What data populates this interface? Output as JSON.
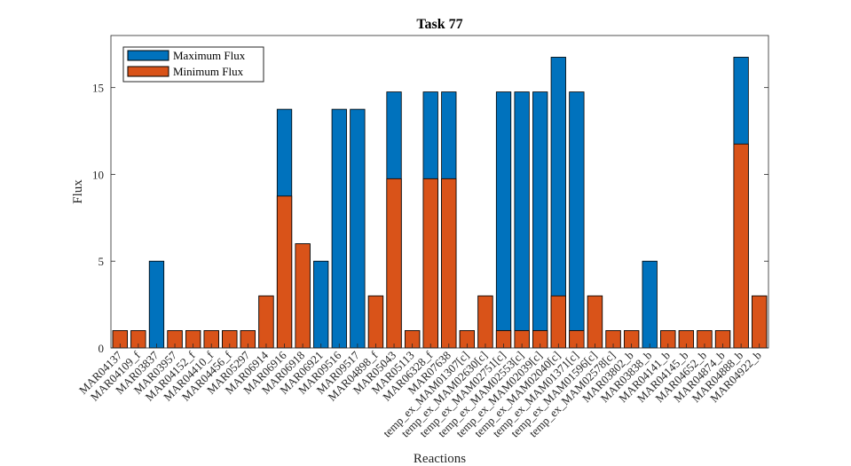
{
  "chart_data": {
    "type": "bar",
    "title": "Task 77",
    "xlabel": "Reactions",
    "ylabel": "Flux",
    "ylim": [
      0,
      18
    ],
    "yticks": [
      0,
      5,
      10,
      15
    ],
    "grid": false,
    "legend_position": "top-left",
    "colors": {
      "max": "#0072BD",
      "min": "#D95319",
      "edge": "#000000"
    },
    "categories": [
      "MAR04137",
      "MAR04109_f",
      "MAR03837",
      "MAR03957",
      "MAR04152_f",
      "MAR04410_f",
      "MAR04456_f",
      "MAR05297",
      "MAR06914",
      "MAR06916",
      "MAR06918",
      "MAR06921",
      "MAR09516",
      "MAR09517",
      "MAR04898_f",
      "MAR05043",
      "MAR05113",
      "MAR06328_f",
      "MAR07638",
      "temp_ex_MAM01307[c]",
      "temp_ex_MAM02630[c]",
      "temp_ex_MAM02751[c]",
      "temp_ex_MAM02553[c]",
      "temp_ex_MAM02039[c]",
      "temp_ex_MAM02040[c]",
      "temp_ex_MAM01371[c]",
      "temp_ex_MAM01596[c]",
      "temp_ex_MAM02578[c]",
      "MAR03802_b",
      "MAR03838_b",
      "MAR04141_b",
      "MAR04145_b",
      "MAR04652_b",
      "MAR04874_b",
      "MAR04888_b",
      "MAR04922_b"
    ],
    "series": [
      {
        "name": "Maximum Flux",
        "values": [
          1,
          1,
          5,
          1,
          1,
          1,
          1,
          1,
          3,
          13.75,
          6,
          5,
          13.75,
          13.75,
          3,
          14.75,
          1,
          14.75,
          14.75,
          1,
          3,
          14.75,
          14.75,
          14.75,
          16.75,
          14.75,
          3,
          1,
          1,
          5,
          1,
          1,
          1,
          1,
          16.75,
          3
        ]
      },
      {
        "name": "Minimum Flux",
        "values": [
          1,
          1,
          0,
          1,
          1,
          1,
          1,
          1,
          3,
          8.75,
          6,
          0,
          0,
          0,
          3,
          9.75,
          1,
          9.75,
          9.75,
          1,
          3,
          1,
          1,
          1,
          3,
          1,
          3,
          1,
          1,
          0,
          1,
          1,
          1,
          1,
          11.75,
          3
        ]
      }
    ]
  }
}
